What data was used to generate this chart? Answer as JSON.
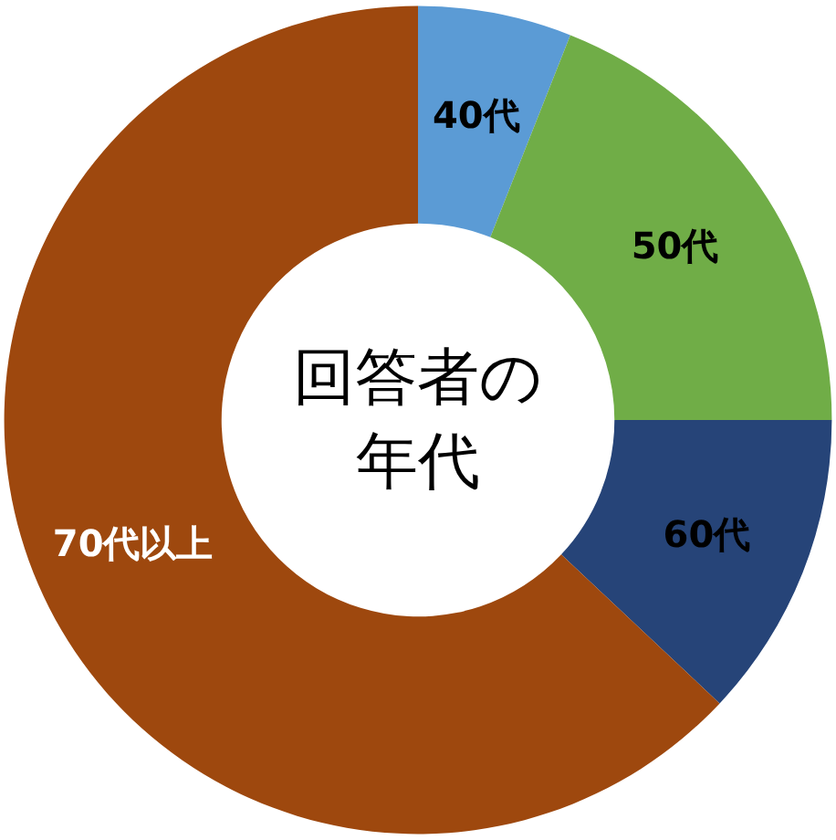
{
  "chart_data": {
    "type": "donut",
    "title": "回答者の年代",
    "categories": [
      "40代",
      "50代",
      "60代",
      "70代以上"
    ],
    "values": [
      6,
      19,
      12,
      63
    ],
    "colors": [
      "#5b9bd5",
      "#70ad47",
      "#264478",
      "#9e480e"
    ],
    "legend": false
  }
}
